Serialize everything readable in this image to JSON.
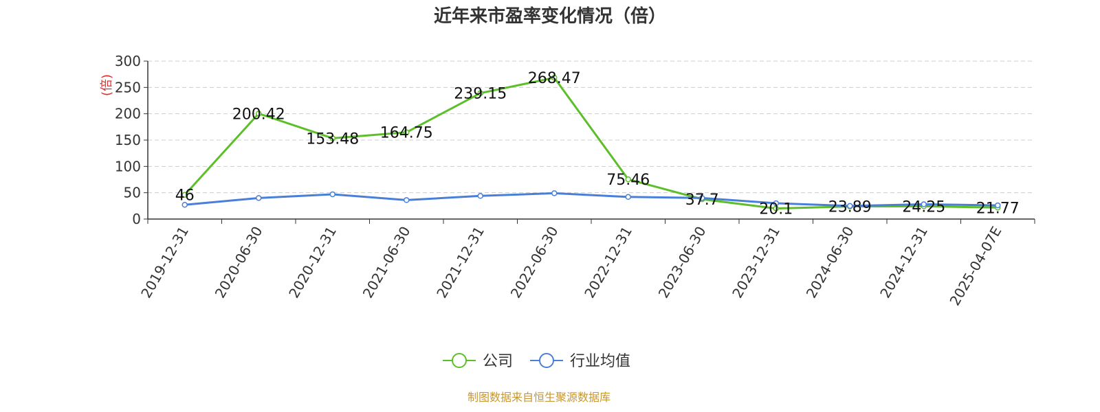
{
  "chart_data": {
    "type": "line",
    "title": "近年来市盈率变化情况（倍）",
    "ylabel": "(倍)",
    "xlabel": "",
    "ylim": [
      0,
      300
    ],
    "yticks": [
      0,
      50,
      100,
      150,
      200,
      250,
      300
    ],
    "categories": [
      "2019-12-31",
      "2020-06-30",
      "2020-12-31",
      "2021-06-30",
      "2021-12-31",
      "2022-06-30",
      "2022-12-31",
      "2023-06-30",
      "2023-12-31",
      "2024-06-30",
      "2024-12-31",
      "2025-04-07E"
    ],
    "grid": true,
    "legend_position": "bottom",
    "series": [
      {
        "name": "公司",
        "color": "#5cbf2a",
        "values": [
          46,
          200.42,
          153.48,
          164.75,
          239.15,
          268.47,
          75.46,
          37.7,
          20.1,
          23.89,
          24.25,
          21.77
        ],
        "labels": [
          "46",
          "200.42",
          "153.48",
          "164.75",
          "239.15",
          "268.47",
          "75.46",
          "37.7",
          "20.1",
          "23.89",
          "24.25",
          "21.77"
        ]
      },
      {
        "name": "行业均值",
        "color": "#4a7fd9",
        "values": [
          27,
          40,
          47,
          36,
          44,
          49,
          42,
          40,
          30,
          25,
          28,
          26
        ]
      }
    ]
  },
  "source": "制图数据来自恒生聚源数据库"
}
